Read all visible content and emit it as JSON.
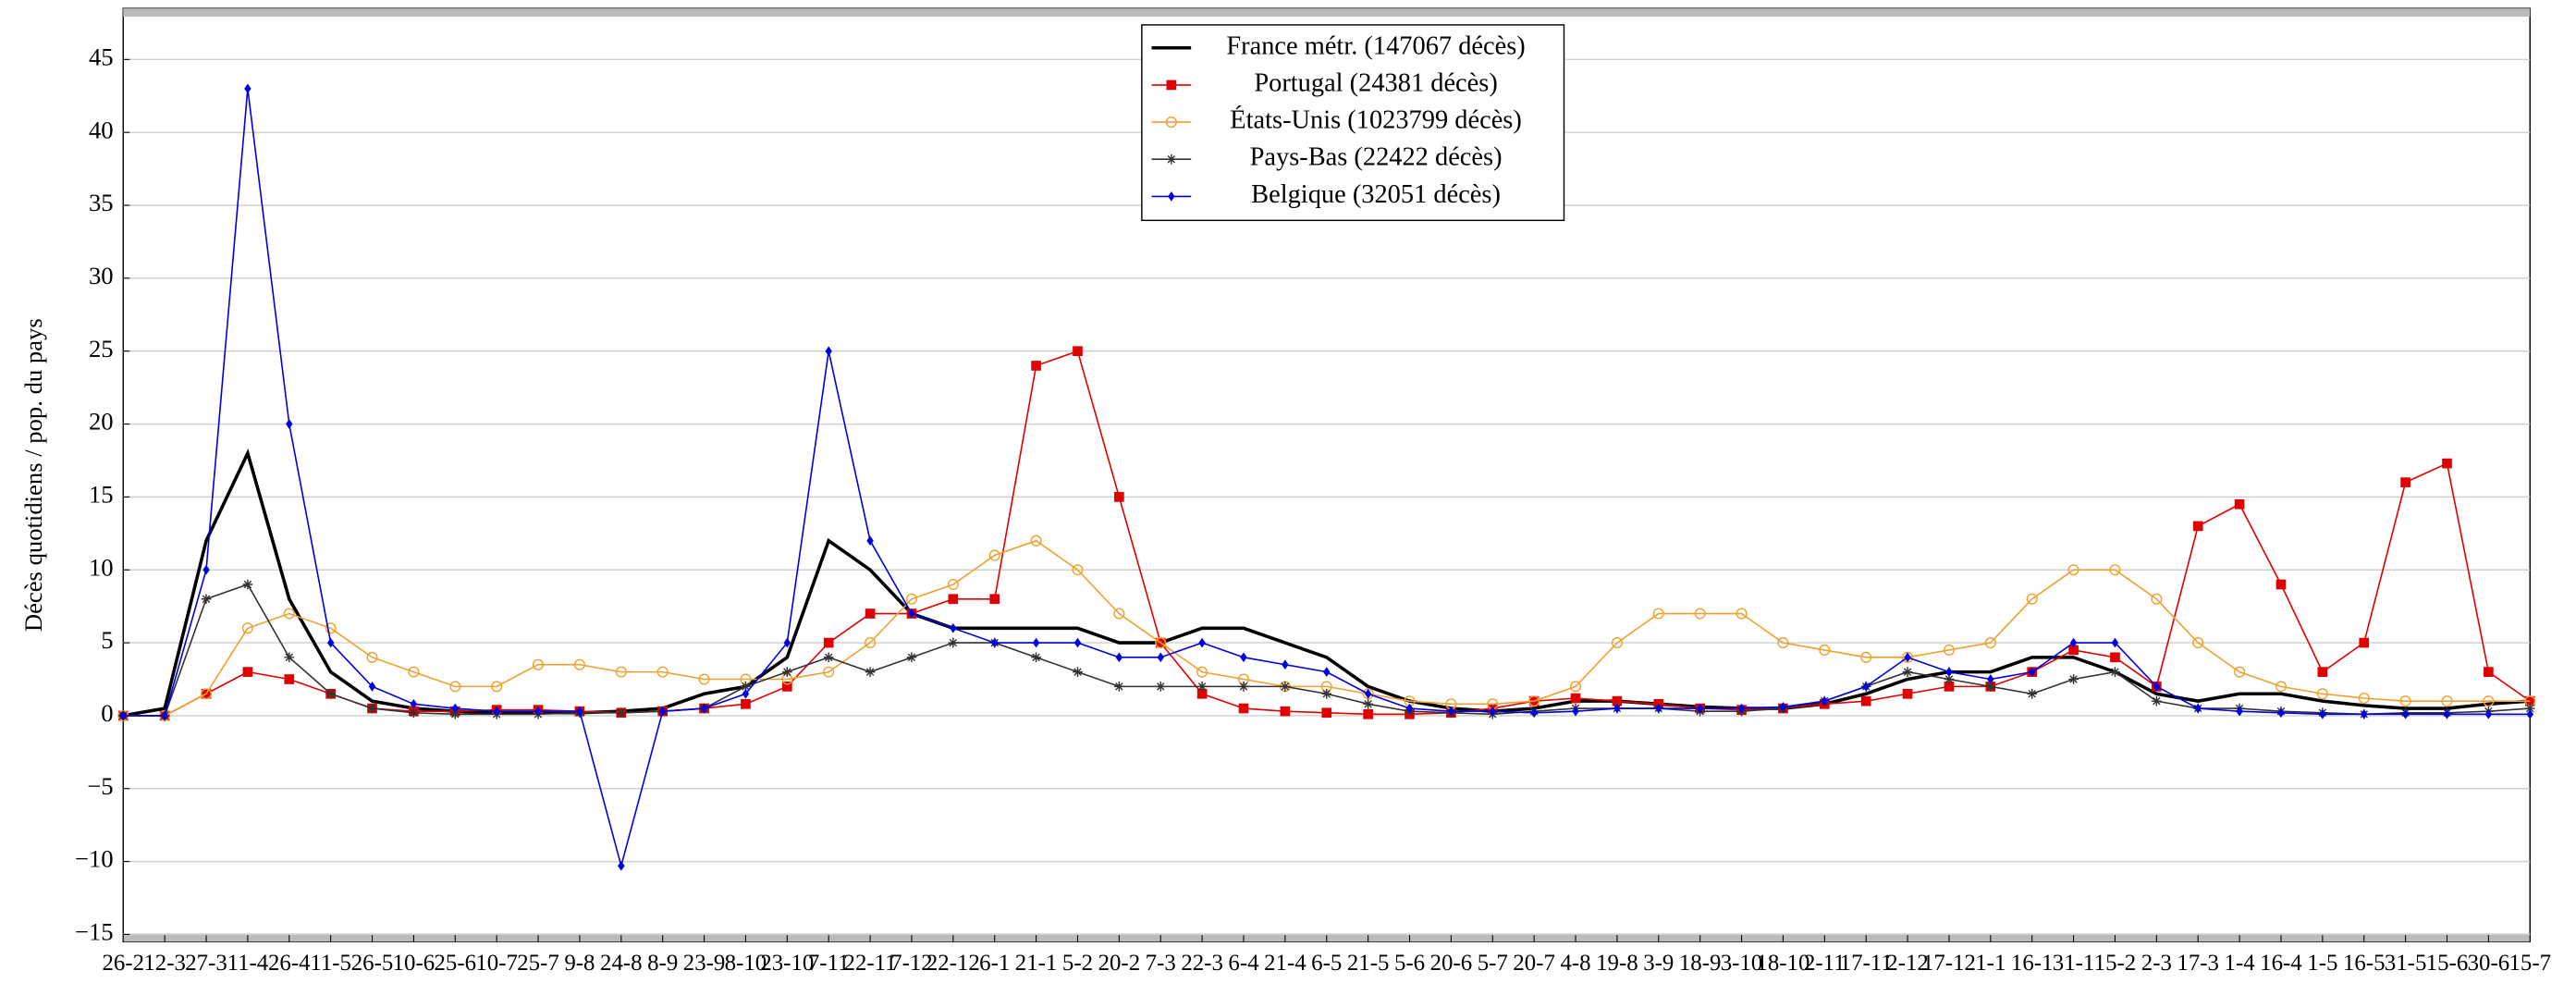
{
  "chart_data": {
    "type": "line",
    "ylabel": "Décès quotidiens / pop. du pays",
    "categories": [
      "26-2",
      "12-3",
      "27-3",
      "11-4",
      "26-4",
      "11-5",
      "26-5",
      "10-6",
      "25-6",
      "10-7",
      "25-7",
      "9-8",
      "24-8",
      "8-9",
      "23-9",
      "8-10",
      "23-10",
      "7-11",
      "22-11",
      "7-12",
      "22-12",
      "6-1",
      "21-1",
      "5-2",
      "20-2",
      "7-3",
      "22-3",
      "6-4",
      "21-4",
      "6-5",
      "21-5",
      "5-6",
      "20-6",
      "5-7",
      "20-7",
      "4-8",
      "19-8",
      "3-9",
      "18-9",
      "3-10",
      "18-10",
      "2-11",
      "17-11",
      "2-12",
      "17-12",
      "1-1",
      "16-1",
      "31-1",
      "15-2",
      "2-3",
      "17-3",
      "1-4",
      "16-4",
      "1-5",
      "16-5",
      "31-5",
      "15-6",
      "30-6",
      "15-7"
    ],
    "series": [
      {
        "name": "France métr. (147067 décès)",
        "color": "#000000",
        "marker": "none",
        "values": [
          0,
          0.5,
          12,
          18,
          8,
          3,
          1,
          0.5,
          0.3,
          0.2,
          0.2,
          0.2,
          0.3,
          0.5,
          1.5,
          2,
          4,
          12,
          10,
          7,
          6,
          6,
          6,
          6,
          5,
          5,
          6,
          6,
          5,
          4,
          2,
          1,
          0.5,
          0.3,
          0.5,
          1,
          1,
          0.8,
          0.6,
          0.5,
          0.5,
          0.8,
          1.5,
          2.5,
          3,
          3,
          4,
          4,
          3,
          1.5,
          1,
          1.5,
          1.5,
          1,
          0.7,
          0.5,
          0.5,
          0.8,
          1
        ]
      },
      {
        "name": "Portugal (24381 décès)",
        "color": "#e00000",
        "marker": "square",
        "values": [
          0,
          0,
          1.5,
          3,
          2.5,
          1.5,
          0.5,
          0.3,
          0.3,
          0.4,
          0.4,
          0.3,
          0.2,
          0.3,
          0.5,
          0.8,
          2,
          5,
          7,
          7,
          8,
          8,
          24,
          25,
          15,
          5,
          1.5,
          0.5,
          0.3,
          0.2,
          0.1,
          0.1,
          0.2,
          0.5,
          1,
          1.2,
          1,
          0.8,
          0.5,
          0.4,
          0.5,
          0.8,
          1,
          1.5,
          2,
          2,
          3,
          4.5,
          4,
          2,
          13,
          14.5,
          9,
          3,
          5,
          16,
          17.3,
          3,
          1
        ]
      },
      {
        "name": "États-Unis (1023799 décès)",
        "color": "#f0a030",
        "marker": "circle",
        "values": [
          0,
          0,
          1.5,
          6,
          7,
          6,
          4,
          3,
          2,
          2,
          3.5,
          3.5,
          3,
          3,
          2.5,
          2.5,
          2.5,
          3,
          5,
          8,
          9,
          11,
          12,
          10,
          7,
          5,
          3,
          2.5,
          2,
          2,
          1.5,
          1,
          0.8,
          0.8,
          1,
          2,
          5,
          7,
          7,
          7,
          5,
          4.5,
          4,
          4,
          4.5,
          5,
          8,
          10,
          10,
          8,
          5,
          3,
          2,
          1.5,
          1.2,
          1,
          1,
          1,
          1
        ]
      },
      {
        "name": "Pays-Bas (22422 décès)",
        "color": "#333333",
        "marker": "star",
        "values": [
          0,
          0,
          8,
          9,
          4,
          1.5,
          0.5,
          0.2,
          0.1,
          0.1,
          0.1,
          0.2,
          0.2,
          0.3,
          0.5,
          2,
          3,
          4,
          3,
          4,
          5,
          5,
          4,
          3,
          2,
          2,
          2,
          2,
          2,
          1.5,
          0.8,
          0.3,
          0.2,
          0.1,
          0.3,
          0.5,
          0.5,
          0.5,
          0.3,
          0.3,
          0.5,
          1,
          2,
          3,
          2.5,
          2,
          1.5,
          2.5,
          3,
          1,
          0.5,
          0.5,
          0.3,
          0.2,
          0.1,
          0.2,
          0.2,
          0.3,
          0.5
        ]
      },
      {
        "name": "Belgique (32051 décès)",
        "color": "#0000e0",
        "marker": "diamond",
        "values": [
          0,
          0,
          10,
          43,
          20,
          5,
          2,
          0.8,
          0.5,
          0.3,
          0.3,
          0.3,
          -10.3,
          0.3,
          0.5,
          1.5,
          5,
          25,
          12,
          7,
          6,
          5,
          5,
          5,
          4,
          4,
          5,
          4,
          3.5,
          3,
          1.5,
          0.5,
          0.3,
          0.3,
          0.2,
          0.3,
          0.5,
          0.5,
          0.5,
          0.5,
          0.6,
          1,
          2,
          4,
          3,
          2.5,
          3,
          5,
          5,
          2,
          0.5,
          0.3,
          0.2,
          0.1,
          0.1,
          0.1,
          0.1,
          0.1,
          0.1
        ]
      }
    ],
    "ylim": [
      -15.5,
      48.5
    ],
    "yticks": [
      {
        "value": -15,
        "label": "−15"
      },
      {
        "value": -10,
        "label": "−10"
      },
      {
        "value": -5,
        "label": "−5"
      },
      0,
      5,
      10,
      15,
      20,
      25,
      30,
      35,
      40,
      45
    ],
    "grid": true,
    "legend": "top"
  }
}
